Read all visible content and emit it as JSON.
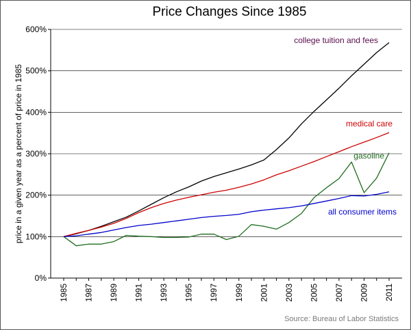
{
  "chart_data": {
    "type": "line",
    "title": "Price Changes Since 1985",
    "xlabel": "",
    "ylabel": "price in a given year as a percent of price in 1985",
    "source": "Source: Bureau of Labor Statistics",
    "ylim": [
      0,
      600
    ],
    "yticks": [
      0,
      100,
      200,
      300,
      400,
      500,
      600
    ],
    "ytick_labels": [
      "0%",
      "100%",
      "200%",
      "300%",
      "400%",
      "500%",
      "600%"
    ],
    "xlim": [
      1985,
      2011
    ],
    "xticks": [
      1985,
      1987,
      1989,
      1991,
      1993,
      1995,
      1997,
      1999,
      2001,
      2003,
      2005,
      2007,
      2009,
      2011
    ],
    "xtick_labels": [
      "1985",
      "1987",
      "1989",
      "1991",
      "1993",
      "1995",
      "1997",
      "1999",
      "2001",
      "2003",
      "2005",
      "2007",
      "2009",
      "2011"
    ],
    "grid": "horizontal",
    "x": [
      1985,
      1986,
      1987,
      1988,
      1989,
      1990,
      1991,
      1992,
      1993,
      1994,
      1995,
      1996,
      1997,
      1998,
      1999,
      2000,
      2001,
      2002,
      2003,
      2004,
      2005,
      2006,
      2007,
      2008,
      2009,
      2010,
      2011
    ],
    "series": [
      {
        "name": "college tuition and fees",
        "color": "#000000",
        "label_color": "#5a0e4e",
        "values": [
          100,
          107,
          115,
          125,
          136,
          147,
          162,
          178,
          194,
          208,
          220,
          234,
          245,
          254,
          263,
          273,
          285,
          310,
          338,
          372,
          402,
          430,
          458,
          488,
          516,
          544,
          568
        ]
      },
      {
        "name": "medical care",
        "color": "#cc0000",
        "label_color": "#cc0000",
        "values": [
          100,
          108,
          115,
          123,
          132,
          144,
          158,
          170,
          180,
          188,
          195,
          201,
          207,
          212,
          219,
          227,
          237,
          249,
          259,
          270,
          281,
          293,
          305,
          317,
          328,
          339,
          351
        ]
      },
      {
        "name": "gasoline",
        "color": "#1e6b1e",
        "label_color": "#1e6b1e",
        "values": [
          100,
          78,
          82,
          82,
          88,
          103,
          101,
          100,
          98,
          98,
          99,
          106,
          106,
          93,
          101,
          129,
          125,
          118,
          134,
          156,
          194,
          218,
          240,
          280,
          206,
          241,
          302
        ]
      },
      {
        "name": "all consumer items",
        "color": "#0000cc",
        "label_color": "#0000cc",
        "values": [
          100,
          102,
          106,
          110,
          116,
          122,
          127,
          130,
          134,
          138,
          142,
          146,
          149,
          151,
          154,
          160,
          164,
          167,
          170,
          174,
          180,
          186,
          192,
          199,
          198,
          202,
          208
        ]
      }
    ]
  }
}
